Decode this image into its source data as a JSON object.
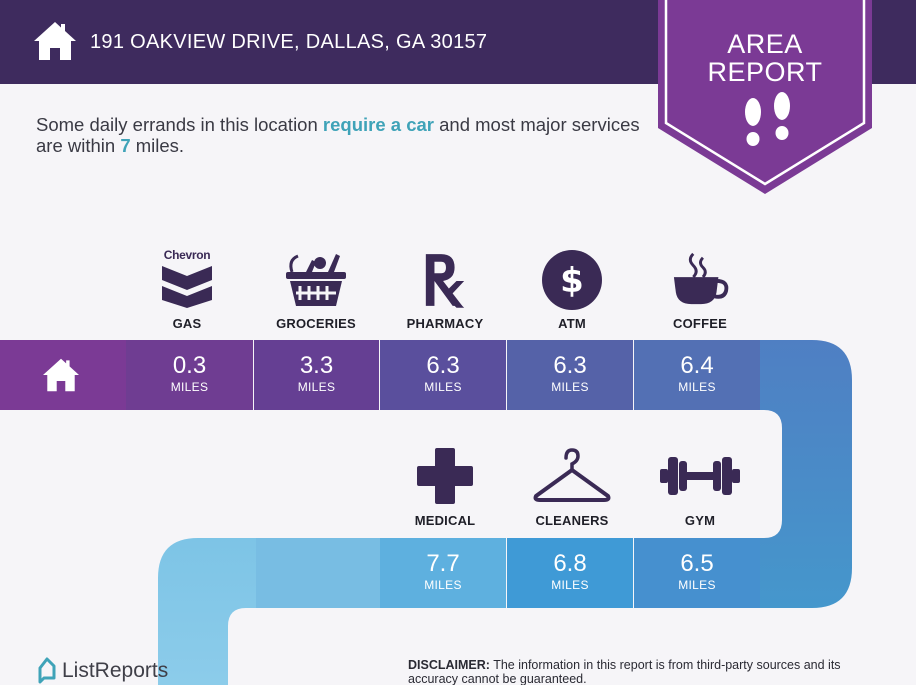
{
  "header": {
    "address": "191 OAKVIEW DRIVE, DALLAS, GA 30157",
    "home_icon": "home-icon"
  },
  "badge": {
    "line1": "AREA",
    "line2": "REPORT",
    "icon": "footprints-icon"
  },
  "intro": {
    "part1": "Some daily errands in this location ",
    "highlight1": "require a car",
    "part2": " and most major services are within ",
    "highlight2": "7",
    "part3": " miles."
  },
  "row1": [
    {
      "label": "GAS",
      "value": "0.3",
      "unit": "MILES",
      "icon": "chevron-logo-icon",
      "brand_text": "Chevron"
    },
    {
      "label": "GROCERIES",
      "value": "3.3",
      "unit": "MILES",
      "icon": "grocery-basket-icon"
    },
    {
      "label": "PHARMACY",
      "value": "6.3",
      "unit": "MILES",
      "icon": "rx-icon"
    },
    {
      "label": "ATM",
      "value": "6.3",
      "unit": "MILES",
      "icon": "dollar-coin-icon"
    },
    {
      "label": "COFFEE",
      "value": "6.4",
      "unit": "MILES",
      "icon": "coffee-cup-icon"
    }
  ],
  "row2": [
    {
      "label": "MEDICAL",
      "value": "7.7",
      "unit": "MILES",
      "icon": "medical-cross-icon"
    },
    {
      "label": "CLEANERS",
      "value": "6.8",
      "unit": "MILES",
      "icon": "hanger-icon"
    },
    {
      "label": "GYM",
      "value": "6.5",
      "unit": "MILES",
      "icon": "dumbbell-icon"
    }
  ],
  "colors": {
    "header_bg": "#3e2b5e",
    "badge": "#7b3a95",
    "icon": "#3a2a55",
    "accent": "#3fa3b8"
  },
  "footer": {
    "brand": "ListReports",
    "disclaimer_title": "DISCLAIMER:",
    "disclaimer_text": " The information in this report is from third-party sources and its accuracy cannot be guaranteed."
  }
}
